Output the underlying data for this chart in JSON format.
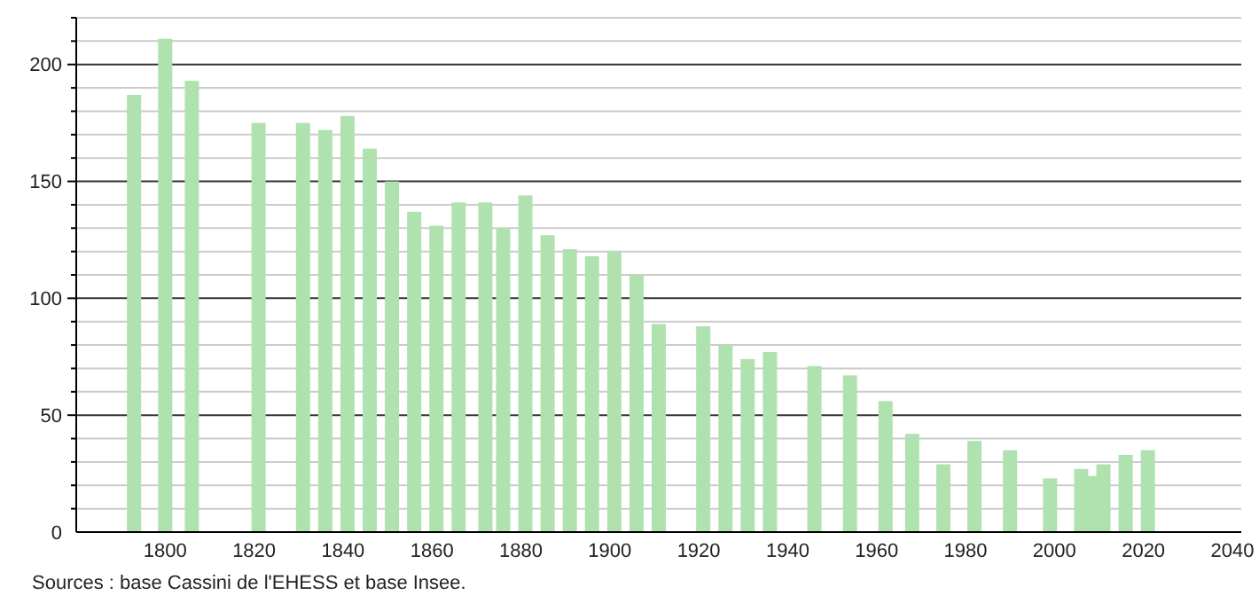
{
  "chart_data": {
    "type": "bar",
    "x": [
      1793,
      1800,
      1806,
      1821,
      1831,
      1836,
      1841,
      1846,
      1851,
      1856,
      1861,
      1866,
      1872,
      1876,
      1881,
      1886,
      1891,
      1896,
      1901,
      1906,
      1911,
      1921,
      1926,
      1931,
      1936,
      1946,
      1954,
      1962,
      1968,
      1975,
      1982,
      1990,
      1999,
      2006,
      2008,
      2011,
      2016,
      2021
    ],
    "values": [
      187,
      211,
      193,
      175,
      175,
      172,
      178,
      164,
      150,
      137,
      131,
      141,
      141,
      130,
      144,
      127,
      121,
      118,
      120,
      110,
      89,
      88,
      80,
      74,
      77,
      71,
      67,
      56,
      42,
      29,
      39,
      35,
      23,
      27,
      24,
      29,
      33,
      35
    ],
    "color": "#b0e2b0",
    "xlim": [
      1780,
      2042
    ],
    "xticks": [
      1800,
      1820,
      1840,
      1860,
      1880,
      1900,
      1920,
      1940,
      1960,
      1980,
      2000,
      2020,
      2040
    ],
    "ylim": [
      0,
      220
    ],
    "yticks": [
      0,
      {
        "value": 10,
        "label": null
      },
      {
        "value": 20,
        "label": null
      },
      {
        "value": 30,
        "label": null
      },
      {
        "value": 40,
        "label": null
      },
      50,
      {
        "value": 60,
        "label": null
      },
      {
        "value": 70,
        "label": null
      },
      {
        "value": 80,
        "label": null
      },
      {
        "value": 90,
        "label": null
      },
      100,
      {
        "value": 110,
        "label": null
      },
      {
        "value": 120,
        "label": null
      },
      {
        "value": 130,
        "label": null
      },
      {
        "value": 140,
        "label": null
      },
      150,
      {
        "value": 160,
        "label": null
      },
      {
        "value": 170,
        "label": null
      },
      {
        "value": 180,
        "label": null
      },
      {
        "value": 190,
        "label": null
      },
      200,
      {
        "value": 210,
        "label": null
      },
      {
        "value": 220,
        "label": null
      }
    ],
    "grid": true,
    "annotations": [
      "Sources : base Cassini de l'EHESS et base Insee."
    ]
  }
}
